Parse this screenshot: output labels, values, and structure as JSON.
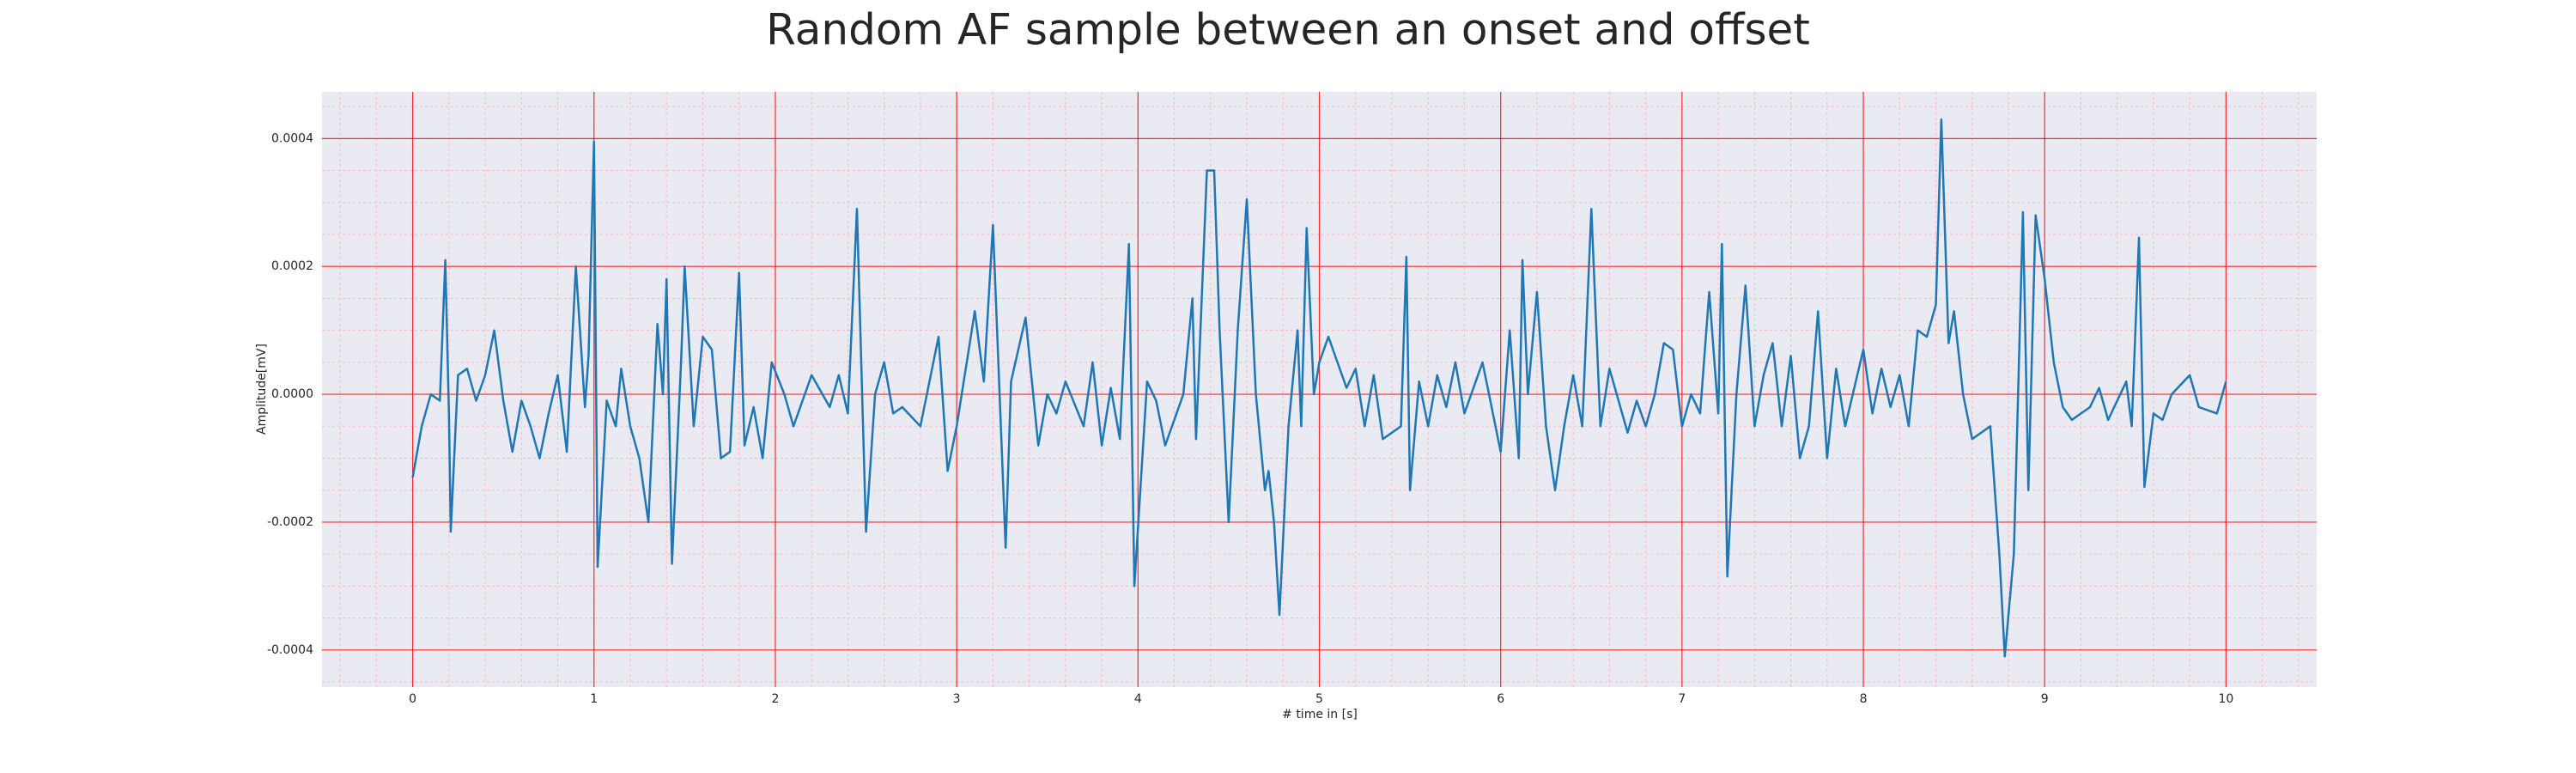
{
  "chart_data": {
    "type": "line",
    "title": "Random AF sample between an onset and offset",
    "x_label": "# time in [s]",
    "y_label": "Amplitude[mV]",
    "color": "#1f77b4",
    "grid": true,
    "minor_grid": true,
    "xlim": [
      -0.5,
      10.5
    ],
    "xticks": [
      0,
      1,
      2,
      3,
      4,
      5,
      6,
      7,
      8,
      9,
      10
    ],
    "ylim": [
      -0.000458,
      0.000473
    ],
    "yticks": [
      -0.0004,
      -0.0002,
      {
        "value": 0,
        "label": "0.0000"
      },
      0.0002,
      0.0004
    ],
    "x": [
      0,
      0.05,
      0.1,
      0.15,
      0.18,
      0.2,
      0.21,
      0.25,
      0.3,
      0.35,
      0.4,
      0.45,
      0.5,
      0.55,
      0.6,
      0.65,
      0.7,
      0.75,
      0.8,
      0.85,
      0.9,
      0.95,
      0.97,
      1.0,
      1.02,
      1.07,
      1.12,
      1.15,
      1.2,
      1.25,
      1.3,
      1.35,
      1.38,
      1.4,
      1.43,
      1.48,
      1.5,
      1.55,
      1.6,
      1.65,
      1.7,
      1.75,
      1.8,
      1.83,
      1.88,
      1.93,
      1.98,
      2.05,
      2.1,
      2.2,
      2.3,
      2.35,
      2.4,
      2.45,
      2.5,
      2.55,
      2.6,
      2.65,
      2.7,
      2.8,
      2.9,
      2.95,
      3.0,
      3.1,
      3.15,
      3.2,
      3.27,
      3.3,
      3.38,
      3.45,
      3.5,
      3.55,
      3.6,
      3.7,
      3.75,
      3.8,
      3.85,
      3.9,
      3.95,
      3.98,
      4.05,
      4.1,
      4.15,
      4.2,
      4.25,
      4.3,
      4.32,
      4.38,
      4.42,
      4.45,
      4.5,
      4.55,
      4.6,
      4.65,
      4.7,
      4.72,
      4.75,
      4.78,
      4.83,
      4.88,
      4.9,
      4.93,
      4.97,
      5.0,
      5.05,
      5.1,
      5.15,
      5.2,
      5.25,
      5.3,
      5.35,
      5.45,
      5.48,
      5.5,
      5.55,
      5.6,
      5.65,
      5.7,
      5.75,
      5.8,
      5.9,
      6.0,
      6.05,
      6.1,
      6.12,
      6.15,
      6.2,
      6.25,
      6.3,
      6.35,
      6.4,
      6.45,
      6.5,
      6.55,
      6.6,
      6.7,
      6.75,
      6.8,
      6.85,
      6.9,
      6.95,
      7.0,
      7.05,
      7.1,
      7.15,
      7.2,
      7.22,
      7.25,
      7.3,
      7.35,
      7.4,
      7.45,
      7.5,
      7.55,
      7.6,
      7.65,
      7.7,
      7.75,
      7.8,
      7.85,
      7.9,
      8.0,
      8.05,
      8.1,
      8.15,
      8.2,
      8.25,
      8.3,
      8.35,
      8.4,
      8.43,
      8.47,
      8.5,
      8.55,
      8.6,
      8.7,
      8.75,
      8.78,
      8.83,
      8.88,
      8.91,
      8.95,
      9.0,
      9.05,
      9.1,
      9.15,
      9.25,
      9.3,
      9.35,
      9.45,
      9.48,
      9.52,
      9.55,
      9.6,
      9.65,
      9.7,
      9.8,
      9.85,
      9.95,
      10.0
    ],
    "values": [
      -0.00013,
      -5e-05,
      0,
      -1e-05,
      0.00021,
      -3e-05,
      -0.000215,
      3e-05,
      4e-05,
      -1e-05,
      3e-05,
      0.0001,
      -1e-05,
      -9e-05,
      -1e-05,
      -5e-05,
      -0.0001,
      -3e-05,
      3e-05,
      -9e-05,
      0.0002,
      -2e-05,
      6e-05,
      0.000395,
      -0.00027,
      -1e-05,
      -5e-05,
      4e-05,
      -5e-05,
      -0.0001,
      -0.0002,
      0.00011,
      0,
      0.00018,
      -0.000265,
      5e-05,
      0.0002,
      -5e-05,
      9e-05,
      7e-05,
      -0.0001,
      -9e-05,
      0.00019,
      -8e-05,
      -2e-05,
      -0.0001,
      5e-05,
      0,
      -5e-05,
      3e-05,
      -2e-05,
      3e-05,
      -3e-05,
      0.00029,
      -0.000215,
      0,
      5e-05,
      -3e-05,
      -2e-05,
      -5e-05,
      9e-05,
      -0.00012,
      -5e-05,
      0.00013,
      2e-05,
      0.000265,
      -0.00024,
      2e-05,
      0.00012,
      -8e-05,
      0,
      -3e-05,
      2e-05,
      -5e-05,
      5e-05,
      -8e-05,
      1e-05,
      -7e-05,
      0.000235,
      -0.0003,
      2e-05,
      -1e-05,
      -8e-05,
      -4e-05,
      0,
      0.00015,
      -7e-05,
      0.00035,
      0.00035,
      0.0001,
      -0.0002,
      0.0001,
      0.000305,
      0,
      -0.00015,
      -0.00012,
      -0.0002,
      -0.000345,
      -5e-05,
      0.0001,
      -5e-05,
      0.00026,
      0,
      5e-05,
      9e-05,
      5e-05,
      1e-05,
      4e-05,
      -5e-05,
      3e-05,
      -7e-05,
      -5e-05,
      0.000215,
      -0.00015,
      2e-05,
      -5e-05,
      3e-05,
      -2e-05,
      5e-05,
      -3e-05,
      5e-05,
      -9e-05,
      0.0001,
      -0.0001,
      0.00021,
      0,
      0.00016,
      -5e-05,
      -0.00015,
      -5e-05,
      3e-05,
      -5e-05,
      0.00029,
      -5e-05,
      4e-05,
      -6e-05,
      -1e-05,
      -5e-05,
      0,
      8e-05,
      7e-05,
      -5e-05,
      0,
      -3e-05,
      0.00016,
      -3e-05,
      0.000235,
      -0.000285,
      0,
      0.00017,
      -5e-05,
      3e-05,
      8e-05,
      -5e-05,
      6e-05,
      -0.0001,
      -5e-05,
      0.00013,
      -0.0001,
      4e-05,
      -5e-05,
      7e-05,
      -3e-05,
      4e-05,
      -2e-05,
      3e-05,
      -5e-05,
      0.0001,
      9e-05,
      0.00014,
      0.00043,
      8e-05,
      0.00013,
      0,
      -7e-05,
      -5e-05,
      -0.00025,
      -0.00041,
      -0.00025,
      0.000285,
      -0.00015,
      0.00028,
      0.00018,
      5e-05,
      -2e-05,
      -4e-05,
      -2e-05,
      1e-05,
      -4e-05,
      2e-05,
      -5e-05,
      0.000245,
      -0.000145,
      -3e-05,
      -4e-05,
      0,
      3e-05,
      -2e-05,
      -3e-05,
      2e-05
    ]
  }
}
